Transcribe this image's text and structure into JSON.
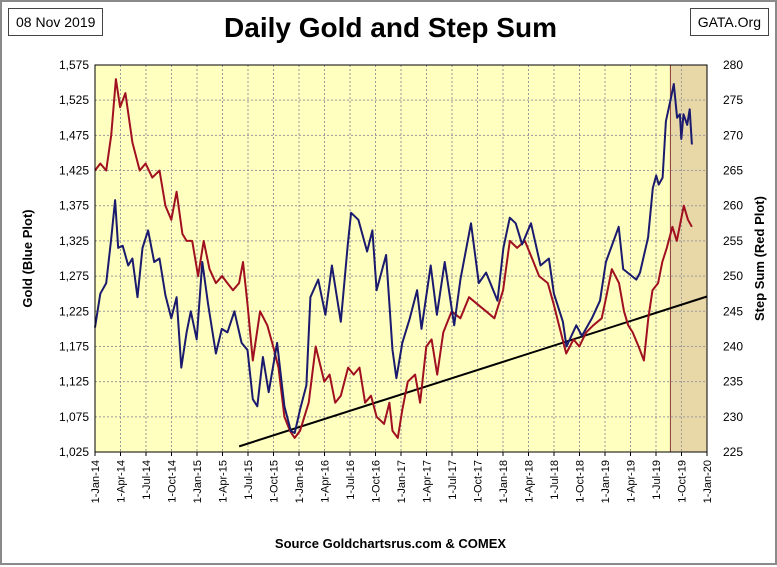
{
  "header": {
    "date_label": "08 Nov 2019",
    "source_tag": "GATA.Org",
    "footer": "Source Goldchartsrus.com & COMEX"
  },
  "colors": {
    "plot_background": "#FFFFC0",
    "shaded_region": "#E8D8A8",
    "gold_line": "#1A1A6E",
    "step_sum_line": "#A01020",
    "trend_line": "#000000"
  },
  "chart_data": {
    "type": "line",
    "title": "Daily Gold and Step Sum",
    "ylabel_left": "Gold   (Blue Plot)",
    "ylabel_right": "Step Sum   (Red Plot)",
    "x_ticks": [
      "1-Jan-14",
      "1-Apr-14",
      "1-Jul-14",
      "1-Oct-14",
      "1-Jan-15",
      "1-Apr-15",
      "1-Jul-15",
      "1-Oct-15",
      "1-Jan-16",
      "1-Apr-16",
      "1-Jul-16",
      "1-Oct-16",
      "1-Jan-17",
      "1-Apr-17",
      "1-Jul-17",
      "1-Oct-17",
      "1-Jan-18",
      "1-Apr-18",
      "1-Jul-18",
      "1-Oct-18",
      "1-Jan-19",
      "1-Apr-19",
      "1-Jul-19",
      "1-Oct-19",
      "1-Jan-20"
    ],
    "xlim": [
      "2014-01-01",
      "2020-01-01"
    ],
    "ylim_left": [
      1025,
      1575
    ],
    "y_ticks_left": [
      "1,025",
      "1,075",
      "1,125",
      "1,175",
      "1,225",
      "1,275",
      "1,325",
      "1,375",
      "1,425",
      "1,475",
      "1,525",
      "1,575"
    ],
    "ylim_right": [
      225,
      280
    ],
    "y_ticks_right": [
      "225",
      "230",
      "235",
      "240",
      "245",
      "250",
      "255",
      "260",
      "265",
      "270",
      "275",
      "280"
    ],
    "grid": true,
    "shaded_region": {
      "start": "2019-08-23",
      "end": "2020-01-01"
    },
    "series": [
      {
        "name": "Gold",
        "axis": "left",
        "points": [
          [
            "2014-01-01",
            1202
          ],
          [
            "2014-01-20",
            1250
          ],
          [
            "2014-02-10",
            1265
          ],
          [
            "2014-02-28",
            1328
          ],
          [
            "2014-03-14",
            1383
          ],
          [
            "2014-03-25",
            1315
          ],
          [
            "2014-04-10",
            1318
          ],
          [
            "2014-04-30",
            1290
          ],
          [
            "2014-05-15",
            1300
          ],
          [
            "2014-06-02",
            1245
          ],
          [
            "2014-06-20",
            1315
          ],
          [
            "2014-07-10",
            1340
          ],
          [
            "2014-08-01",
            1295
          ],
          [
            "2014-08-20",
            1300
          ],
          [
            "2014-09-10",
            1248
          ],
          [
            "2014-10-01",
            1215
          ],
          [
            "2014-10-20",
            1245
          ],
          [
            "2014-11-06",
            1145
          ],
          [
            "2014-11-25",
            1195
          ],
          [
            "2014-12-10",
            1225
          ],
          [
            "2014-12-31",
            1185
          ],
          [
            "2015-01-20",
            1295
          ],
          [
            "2015-02-10",
            1235
          ],
          [
            "2015-03-10",
            1165
          ],
          [
            "2015-03-31",
            1200
          ],
          [
            "2015-04-20",
            1195
          ],
          [
            "2015-05-15",
            1225
          ],
          [
            "2015-06-10",
            1180
          ],
          [
            "2015-07-01",
            1170
          ],
          [
            "2015-07-20",
            1100
          ],
          [
            "2015-08-05",
            1090
          ],
          [
            "2015-08-25",
            1160
          ],
          [
            "2015-09-15",
            1110
          ],
          [
            "2015-10-15",
            1180
          ],
          [
            "2015-11-10",
            1090
          ],
          [
            "2015-12-03",
            1055
          ],
          [
            "2015-12-17",
            1052
          ],
          [
            "2016-01-05",
            1085
          ],
          [
            "2016-01-28",
            1120
          ],
          [
            "2016-02-11",
            1245
          ],
          [
            "2016-03-10",
            1270
          ],
          [
            "2016-04-05",
            1220
          ],
          [
            "2016-04-28",
            1290
          ],
          [
            "2016-05-30",
            1210
          ],
          [
            "2016-06-24",
            1320
          ],
          [
            "2016-07-06",
            1365
          ],
          [
            "2016-08-01",
            1355
          ],
          [
            "2016-09-01",
            1310
          ],
          [
            "2016-09-20",
            1340
          ],
          [
            "2016-10-05",
            1255
          ],
          [
            "2016-11-08",
            1305
          ],
          [
            "2016-12-01",
            1170
          ],
          [
            "2016-12-15",
            1130
          ],
          [
            "2017-01-05",
            1180
          ],
          [
            "2017-02-01",
            1215
          ],
          [
            "2017-02-27",
            1255
          ],
          [
            "2017-03-15",
            1200
          ],
          [
            "2017-04-17",
            1290
          ],
          [
            "2017-05-09",
            1220
          ],
          [
            "2017-06-06",
            1295
          ],
          [
            "2017-07-10",
            1205
          ],
          [
            "2017-08-01",
            1270
          ],
          [
            "2017-09-08",
            1350
          ],
          [
            "2017-10-06",
            1265
          ],
          [
            "2017-11-01",
            1280
          ],
          [
            "2017-12-12",
            1240
          ],
          [
            "2018-01-02",
            1315
          ],
          [
            "2018-01-25",
            1358
          ],
          [
            "2018-02-15",
            1350
          ],
          [
            "2018-03-10",
            1320
          ],
          [
            "2018-04-11",
            1350
          ],
          [
            "2018-05-15",
            1290
          ],
          [
            "2018-06-14",
            1300
          ],
          [
            "2018-07-02",
            1250
          ],
          [
            "2018-08-03",
            1210
          ],
          [
            "2018-08-16",
            1175
          ],
          [
            "2018-09-20",
            1205
          ],
          [
            "2018-10-10",
            1190
          ],
          [
            "2018-11-15",
            1215
          ],
          [
            "2018-12-14",
            1240
          ],
          [
            "2019-01-04",
            1295
          ],
          [
            "2019-02-19",
            1345
          ],
          [
            "2019-03-07",
            1285
          ],
          [
            "2019-04-23",
            1270
          ],
          [
            "2019-05-06",
            1280
          ],
          [
            "2019-06-04",
            1330
          ],
          [
            "2019-06-21",
            1400
          ],
          [
            "2019-07-03",
            1418
          ],
          [
            "2019-07-12",
            1405
          ],
          [
            "2019-07-26",
            1415
          ],
          [
            "2019-08-07",
            1495
          ],
          [
            "2019-08-26",
            1530
          ],
          [
            "2019-09-04",
            1548
          ],
          [
            "2019-09-16",
            1500
          ],
          [
            "2019-09-26",
            1505
          ],
          [
            "2019-10-01",
            1470
          ],
          [
            "2019-10-09",
            1505
          ],
          [
            "2019-10-22",
            1490
          ],
          [
            "2019-10-31",
            1512
          ],
          [
            "2019-11-08",
            1462
          ]
        ]
      },
      {
        "name": "Step Sum",
        "axis": "right",
        "points": [
          [
            "2014-01-01",
            265
          ],
          [
            "2014-01-20",
            266
          ],
          [
            "2014-02-10",
            265
          ],
          [
            "2014-02-28",
            270
          ],
          [
            "2014-03-17",
            278
          ],
          [
            "2014-04-01",
            274
          ],
          [
            "2014-04-20",
            276
          ],
          [
            "2014-05-15",
            269
          ],
          [
            "2014-06-10",
            265
          ],
          [
            "2014-07-01",
            266
          ],
          [
            "2014-07-25",
            264
          ],
          [
            "2014-08-20",
            265
          ],
          [
            "2014-09-10",
            260
          ],
          [
            "2014-10-01",
            258
          ],
          [
            "2014-10-20",
            262
          ],
          [
            "2014-11-10",
            256
          ],
          [
            "2014-11-25",
            255
          ],
          [
            "2014-12-15",
            255
          ],
          [
            "2015-01-05",
            250
          ],
          [
            "2015-01-25",
            255
          ],
          [
            "2015-02-15",
            251
          ],
          [
            "2015-03-10",
            249
          ],
          [
            "2015-04-01",
            250
          ],
          [
            "2015-04-20",
            249
          ],
          [
            "2015-05-10",
            248
          ],
          [
            "2015-06-01",
            249
          ],
          [
            "2015-06-15",
            252
          ],
          [
            "2015-07-01",
            246
          ],
          [
            "2015-07-20",
            238
          ],
          [
            "2015-08-15",
            245
          ],
          [
            "2015-09-10",
            243
          ],
          [
            "2015-10-01",
            240
          ],
          [
            "2015-10-20",
            237
          ],
          [
            "2015-11-10",
            230
          ],
          [
            "2015-11-30",
            228
          ],
          [
            "2015-12-17",
            227
          ],
          [
            "2016-01-05",
            228
          ],
          [
            "2016-02-05",
            232
          ],
          [
            "2016-03-01",
            240
          ],
          [
            "2016-04-01",
            235
          ],
          [
            "2016-04-20",
            236
          ],
          [
            "2016-05-10",
            232
          ],
          [
            "2016-05-30",
            233
          ],
          [
            "2016-06-25",
            237
          ],
          [
            "2016-07-15",
            236
          ],
          [
            "2016-08-05",
            237
          ],
          [
            "2016-08-25",
            232
          ],
          [
            "2016-09-15",
            233
          ],
          [
            "2016-10-05",
            230
          ],
          [
            "2016-11-01",
            229
          ],
          [
            "2016-11-20",
            232
          ],
          [
            "2016-12-01",
            228
          ],
          [
            "2016-12-20",
            227
          ],
          [
            "2017-01-05",
            231
          ],
          [
            "2017-01-25",
            235
          ],
          [
            "2017-02-20",
            236
          ],
          [
            "2017-03-10",
            232
          ],
          [
            "2017-04-01",
            240
          ],
          [
            "2017-04-20",
            241
          ],
          [
            "2017-05-10",
            236
          ],
          [
            "2017-06-01",
            242
          ],
          [
            "2017-07-01",
            245
          ],
          [
            "2017-08-01",
            244
          ],
          [
            "2017-09-01",
            247
          ],
          [
            "2017-10-01",
            246
          ],
          [
            "2017-11-01",
            245
          ],
          [
            "2017-12-01",
            244
          ],
          [
            "2018-01-01",
            248
          ],
          [
            "2018-01-25",
            255
          ],
          [
            "2018-02-20",
            254
          ],
          [
            "2018-03-20",
            255
          ],
          [
            "2018-04-20",
            252
          ],
          [
            "2018-05-10",
            250
          ],
          [
            "2018-06-10",
            249
          ],
          [
            "2018-07-01",
            246
          ],
          [
            "2018-07-20",
            243
          ],
          [
            "2018-08-15",
            239
          ],
          [
            "2018-09-10",
            241
          ],
          [
            "2018-10-01",
            240
          ],
          [
            "2018-10-25",
            242
          ],
          [
            "2018-11-20",
            243
          ],
          [
            "2018-12-20",
            244
          ],
          [
            "2019-01-05",
            247
          ],
          [
            "2019-01-25",
            251
          ],
          [
            "2019-02-20",
            249
          ],
          [
            "2019-03-10",
            245
          ],
          [
            "2019-03-25",
            243
          ],
          [
            "2019-04-10",
            242
          ],
          [
            "2019-05-01",
            240
          ],
          [
            "2019-05-20",
            238
          ],
          [
            "2019-06-05",
            244
          ],
          [
            "2019-06-20",
            248
          ],
          [
            "2019-07-10",
            249
          ],
          [
            "2019-07-25",
            252
          ],
          [
            "2019-08-10",
            254
          ],
          [
            "2019-08-30",
            257
          ],
          [
            "2019-09-15",
            255
          ],
          [
            "2019-09-30",
            258
          ],
          [
            "2019-10-10",
            260
          ],
          [
            "2019-10-25",
            258
          ],
          [
            "2019-11-08",
            257
          ]
        ]
      }
    ],
    "trend_line": [
      [
        "2015-06-01",
        1033
      ],
      [
        "2020-01-01",
        1246
      ]
    ]
  }
}
